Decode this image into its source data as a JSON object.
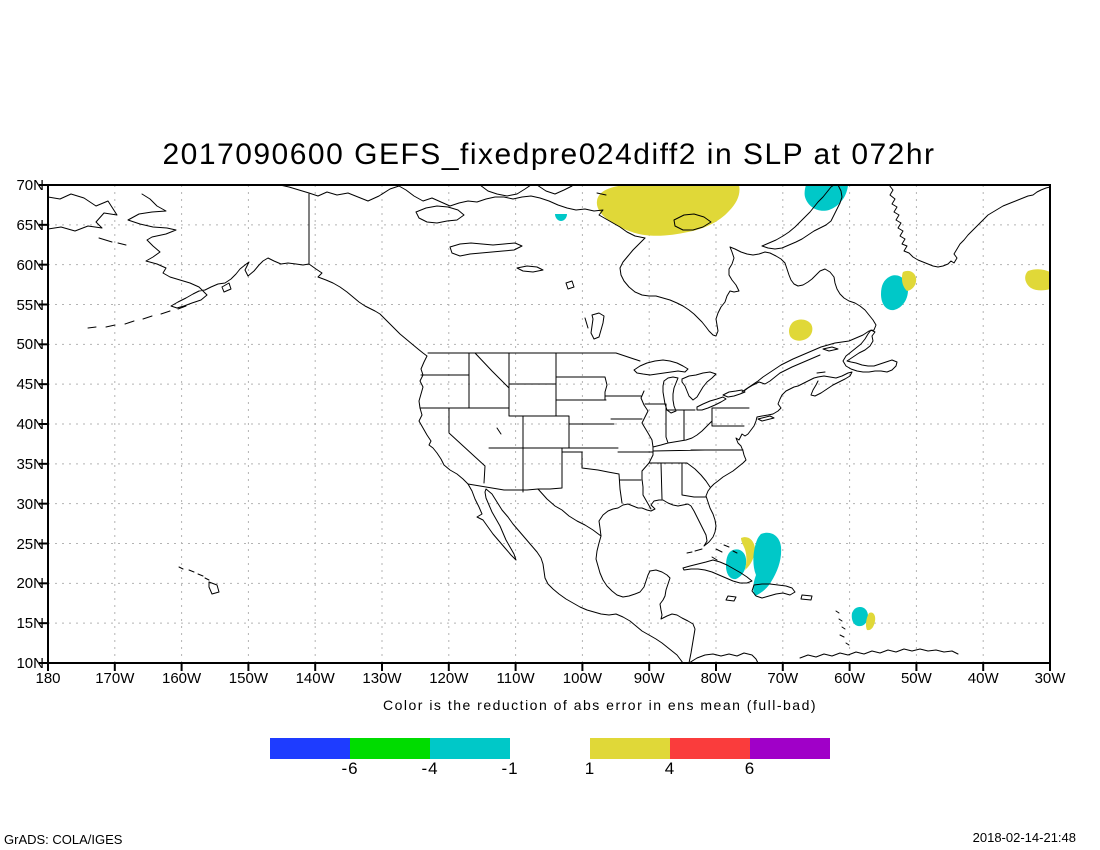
{
  "header": {
    "title": "2017090600 GEFS_fixedpre024diff2 in SLP at 072hr"
  },
  "axes": {
    "lat_labels": [
      "70N",
      "65N",
      "60N",
      "55N",
      "50N",
      "45N",
      "40N",
      "35N",
      "30N",
      "25N",
      "20N",
      "15N",
      "10N"
    ],
    "lon_labels": [
      "180",
      "170W",
      "160W",
      "150W",
      "140W",
      "130W",
      "120W",
      "110W",
      "100W",
      "90W",
      "80W",
      "70W",
      "60W",
      "50W",
      "40W",
      "30W"
    ]
  },
  "caption": "Color is the reduction of abs error in ens mean (full-bad)",
  "colorbar": {
    "left": {
      "segments": [
        {
          "name": "blue",
          "color": "#1e3cff"
        },
        {
          "name": "green",
          "color": "#00dc00"
        },
        {
          "name": "cyan",
          "color": "#00c8c8"
        }
      ],
      "labels": [
        "-6",
        "-4",
        "-1"
      ]
    },
    "right": {
      "segments": [
        {
          "name": "yellow",
          "color": "#e0d838"
        },
        {
          "name": "red",
          "color": "#fa3c3c"
        },
        {
          "name": "purple",
          "color": "#a000c8"
        }
      ],
      "labels": [
        "1",
        "4",
        "6"
      ]
    }
  },
  "palette": {
    "negative_fill": "#00c8c8",
    "positive_fill": "#e0d838",
    "coast": "#000000",
    "grid": "#b3b3b3"
  },
  "footer": {
    "left": "GrADS: COLA/IGES",
    "right": "2018-02-14-21:48"
  },
  "chart_data": {
    "type": "heatmap",
    "subtype": "filled_contour_lat_lon_map",
    "title": "2017090600 GEFS_fixedpre024diff2 in SLP at 072hr",
    "projection": "equirectangular (lat/lon)",
    "lon_range": [
      "180",
      "30W"
    ],
    "lat_range": [
      "10N",
      "70N"
    ],
    "lon_ticks_every_deg": 10,
    "lat_ticks_every_deg": 5,
    "grid": "dotted gray, 10 deg lon x 5 deg lat",
    "legend_caption": "Color is the reduction of abs error in ens mean (full-bad)",
    "legend_bins": [
      {
        "range": "below -6",
        "color_name": "blue",
        "color": "#1e3cff"
      },
      {
        "range": "-6 to -4",
        "color_name": "green",
        "color": "#00dc00"
      },
      {
        "range": "-4 to -1",
        "color_name": "cyan",
        "color": "#00c8c8"
      },
      {
        "range": "1 to 4",
        "color_name": "yellow",
        "color": "#e0d838"
      },
      {
        "range": "4 to 6",
        "color_name": "red",
        "color": "#fa3c3c"
      },
      {
        "range": "above 6",
        "color_name": "purple",
        "color": "#a000c8"
      }
    ],
    "regions": [
      {
        "value_bin": "1 to 4",
        "color": "yellow",
        "lon": "97W-77W",
        "lat": "63N-70N",
        "location": "Nunavut / Foxe Basin, touches top edge"
      },
      {
        "value_bin": "-4 to -1",
        "color": "cyan",
        "lon": "67W-60W",
        "lat": "66N-70N",
        "location": "Baffin Bay, touches top edge"
      },
      {
        "value_bin": "-4 to -1",
        "color": "cyan",
        "lon": "104W",
        "lat": "66N",
        "location": "tiny spot NW of Hudson Bay"
      },
      {
        "value_bin": "-4 to -1",
        "color": "cyan",
        "lon": "55W-51W",
        "lat": "54N-59N",
        "location": "Labrador Sea south of Greenland"
      },
      {
        "value_bin": "1 to 4",
        "color": "yellow",
        "lon": "53W-50W",
        "lat": "57N-59N",
        "location": "wedge NE of Labrador Sea spot"
      },
      {
        "value_bin": "1 to 4",
        "color": "yellow",
        "lon": "69W-66W",
        "lat": "50N-53N",
        "location": "eastern Quebec / Labrador"
      },
      {
        "value_bin": "1 to 4",
        "color": "yellow",
        "lon": "34W-30W",
        "lat": "56N-59N",
        "location": "North Atlantic, touches right edge"
      },
      {
        "value_bin": "-4 to -1",
        "color": "cyan",
        "lon": "79W-75W",
        "lat": "21N-24N",
        "location": "Bahamas / north of Cuba, west lobe"
      },
      {
        "value_bin": "1 to 4",
        "color": "yellow",
        "lon": "77W-74W",
        "lat": "22N-26N",
        "location": "Bahamas crescent"
      },
      {
        "value_bin": "-4 to -1",
        "color": "cyan",
        "lon": "74W-70W",
        "lat": "18N-26N",
        "location": "comma east of Bahamas"
      },
      {
        "value_bin": "-4 to -1",
        "color": "cyan",
        "lon": "60W-57W",
        "lat": "15N-17N",
        "location": "Lesser Antilles"
      },
      {
        "value_bin": "1 to 4",
        "color": "yellow",
        "lon": "58W-56W",
        "lat": "14N-16N",
        "location": "east of Lesser Antilles"
      }
    ]
  }
}
